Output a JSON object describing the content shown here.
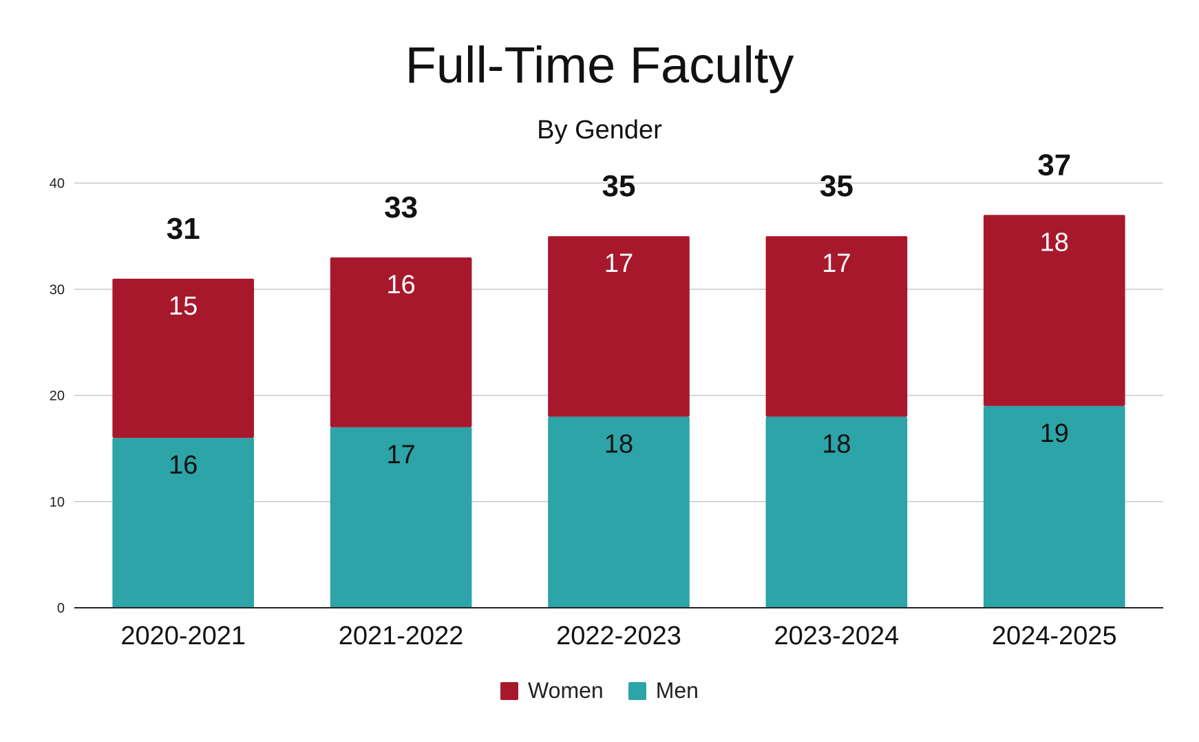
{
  "chart_data": {
    "type": "bar",
    "stacked": true,
    "title": "Full-Time Faculty",
    "subtitle": "By Gender",
    "xlabel": "",
    "ylabel": "",
    "categories": [
      "2020-2021",
      "2021-2022",
      "2022-2023",
      "2023-2024",
      "2024-2025"
    ],
    "series": [
      {
        "name": "Men",
        "color": "#2ca4a8",
        "label_color": "#111111",
        "values": [
          16,
          17,
          18,
          18,
          19
        ]
      },
      {
        "name": "Women",
        "color": "#a8182c",
        "label_color": "#ffffff",
        "values": [
          15,
          16,
          17,
          17,
          18
        ]
      }
    ],
    "totals": [
      31,
      33,
      35,
      35,
      37
    ],
    "ylim": [
      0,
      40
    ],
    "yticks": [
      0,
      10,
      20,
      30,
      40
    ],
    "grid": true,
    "legend_position": "bottom",
    "legend_order": [
      "Women",
      "Men"
    ]
  }
}
